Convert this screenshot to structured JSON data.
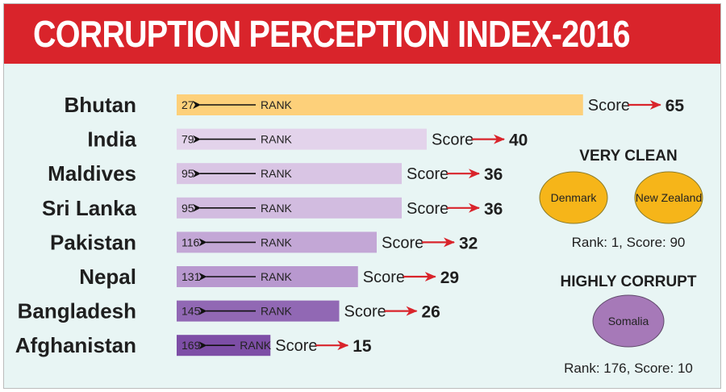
{
  "title": "CORRUPTION PERCEPTION INDEX-2016",
  "colors": {
    "header": "#d9242b",
    "background": "#e8f5f4",
    "arrow_red": "#d9242b",
    "clean_oval": "#f6b519",
    "corrupt_oval": "#a679b8"
  },
  "chart_data": {
    "type": "bar",
    "orientation": "horizontal",
    "title": "CORRUPTION PERCEPTION INDEX-2016",
    "rank_label": "RANK",
    "score_label": "Score",
    "categories": [
      "Bhutan",
      "India",
      "Maldives",
      "Sri Lanka",
      "Pakistan",
      "Nepal",
      "Bangladesh",
      "Afghanistan"
    ],
    "series": [
      {
        "name": "Score",
        "values": [
          65,
          40,
          36,
          36,
          32,
          29,
          26,
          15
        ]
      },
      {
        "name": "RANK",
        "values": [
          27,
          79,
          95,
          95,
          116,
          131,
          145,
          169
        ]
      }
    ],
    "bar_colors": [
      "#fdd07a",
      "#e3d3eb",
      "#d9c5e4",
      "#d2bce0",
      "#c3a7d6",
      "#b898cf",
      "#9168b4",
      "#7d4ea6"
    ]
  },
  "very_clean": {
    "heading": "VERY CLEAN",
    "countries": [
      "Denmark",
      "New Zealand"
    ],
    "caption": "Rank: 1, Score: 90"
  },
  "highly_corrupt": {
    "heading": "HIGHLY CORRUPT",
    "countries": [
      "Somalia"
    ],
    "caption": "Rank: 176, Score: 10"
  }
}
